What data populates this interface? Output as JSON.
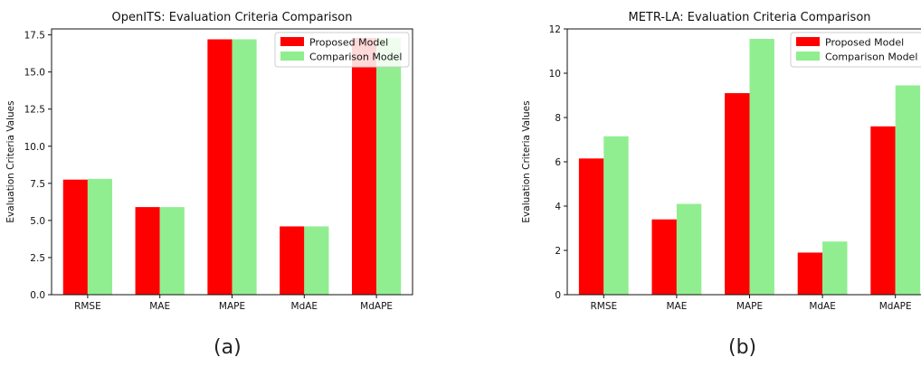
{
  "chart_data": [
    {
      "type": "bar",
      "title": "OpenITS: Evaluation Criteria Comparison",
      "xlabel": "",
      "ylabel": "Evaluation Criteria Values",
      "categories": [
        "RMSE",
        "MAE",
        "MAPE",
        "MdAE",
        "MdAPE"
      ],
      "series": [
        {
          "name": "Proposed Model",
          "color": "#ff0000",
          "values": [
            7.75,
            5.9,
            17.2,
            4.6,
            17.3
          ]
        },
        {
          "name": "Comparison Model",
          "color": "#90ee90",
          "values": [
            7.8,
            5.9,
            17.2,
            4.6,
            17.3
          ]
        }
      ],
      "ylim": [
        0,
        17.9
      ],
      "yticks": [
        0.0,
        2.5,
        5.0,
        7.5,
        10.0,
        12.5,
        15.0,
        17.5
      ],
      "ytick_labels": [
        "0.0",
        "2.5",
        "5.0",
        "7.5",
        "10.0",
        "12.5",
        "15.0",
        "17.5"
      ],
      "legend": "top-right",
      "grid": false,
      "caption": "(a)"
    },
    {
      "type": "bar",
      "title": "METR-LA: Evaluation Criteria Comparison",
      "xlabel": "",
      "ylabel": "Evaluation Criteria Values",
      "categories": [
        "RMSE",
        "MAE",
        "MAPE",
        "MdAE",
        "MdAPE"
      ],
      "series": [
        {
          "name": "Proposed Model",
          "color": "#ff0000",
          "values": [
            6.15,
            3.4,
            9.1,
            1.9,
            7.6
          ]
        },
        {
          "name": "Comparison Model",
          "color": "#90ee90",
          "values": [
            7.15,
            4.1,
            11.55,
            2.4,
            9.45
          ]
        }
      ],
      "ylim": [
        0,
        12
      ],
      "yticks": [
        0,
        2,
        4,
        6,
        8,
        10,
        12
      ],
      "ytick_labels": [
        "0",
        "2",
        "4",
        "6",
        "8",
        "10",
        "12"
      ],
      "legend": "top-right",
      "grid": false,
      "caption": "(b)"
    }
  ]
}
